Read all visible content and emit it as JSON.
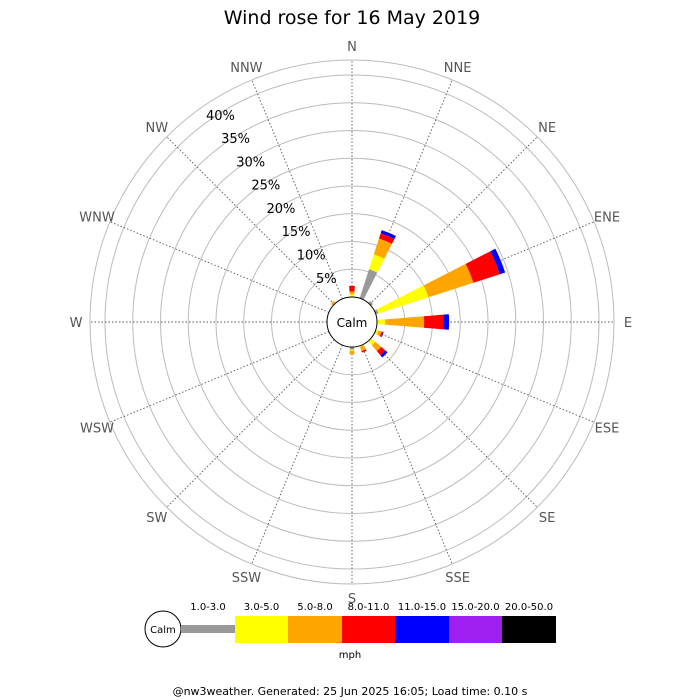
{
  "chart_data": {
    "type": "wind-rose",
    "title": "Wind rose for 16 May 2019",
    "directions": [
      "N",
      "NNE",
      "NE",
      "ENE",
      "E",
      "ESE",
      "SE",
      "SSE",
      "S",
      "SSW",
      "SW",
      "WSW",
      "W",
      "WNW",
      "NW",
      "NNW"
    ],
    "rings_percent": [
      5,
      10,
      15,
      20,
      25,
      30,
      35,
      40
    ],
    "ring_labels": [
      "5%",
      "10%",
      "15%",
      "20%",
      "25%",
      "30%",
      "35%",
      "40%"
    ],
    "rlim": [
      0,
      42
    ],
    "calm_label": "Calm",
    "units": "mph",
    "speed_bins": [
      {
        "label": "1.0-3.0",
        "color": "#999999"
      },
      {
        "label": "3.0-5.0",
        "color": "#ffff00"
      },
      {
        "label": "5.0-8.0",
        "color": "#ffa500"
      },
      {
        "label": "8.0-11.0",
        "color": "#ff0000"
      },
      {
        "label": "11.0-15.0",
        "color": "#0000ff"
      },
      {
        "label": "15.0-20.0",
        "color": "#a020f0"
      },
      {
        "label": "20.0-50.0",
        "color": "#000000"
      }
    ],
    "series": [
      {
        "values": [
          0.0,
          5.5,
          0.5,
          0.5,
          0.0,
          0.0,
          0.0,
          0.0,
          0.5,
          0.0,
          0.0,
          0.0,
          0.0,
          0.0,
          0.0,
          0.0
        ]
      },
      {
        "values": [
          0.5,
          2.8,
          0.0,
          9.5,
          1.5,
          0.5,
          1.0,
          0.2,
          0.2,
          0.0,
          0.0,
          0.0,
          0.0,
          0.0,
          0.0,
          0.0
        ]
      },
      {
        "values": [
          0.5,
          3.0,
          0.0,
          8.5,
          7.0,
          0.6,
          1.4,
          0.8,
          0.6,
          0.0,
          0.0,
          0.0,
          0.0,
          0.0,
          0.5,
          0.0
        ]
      },
      {
        "values": [
          1.0,
          1.0,
          0.0,
          5.0,
          3.5,
          0.3,
          1.0,
          0.3,
          0.0,
          0.0,
          0.0,
          0.0,
          0.0,
          0.0,
          0.0,
          0.0
        ]
      },
      {
        "values": [
          0.0,
          0.6,
          0.0,
          1.0,
          1.0,
          0.1,
          0.5,
          0.0,
          0.0,
          0.0,
          0.0,
          0.0,
          0.0,
          0.0,
          0.0,
          0.0
        ]
      },
      {
        "values": [
          0,
          0,
          0,
          0,
          0,
          0,
          0,
          0,
          0,
          0,
          0,
          0,
          0,
          0,
          0,
          0
        ]
      },
      {
        "values": [
          0,
          0,
          0,
          0,
          0,
          0,
          0,
          0,
          0,
          0,
          0,
          0,
          0,
          0,
          0,
          0
        ]
      }
    ]
  },
  "footer": "@nw3weather. Generated: 25 Jun 2025 16:05; Load time: 0.10 s"
}
